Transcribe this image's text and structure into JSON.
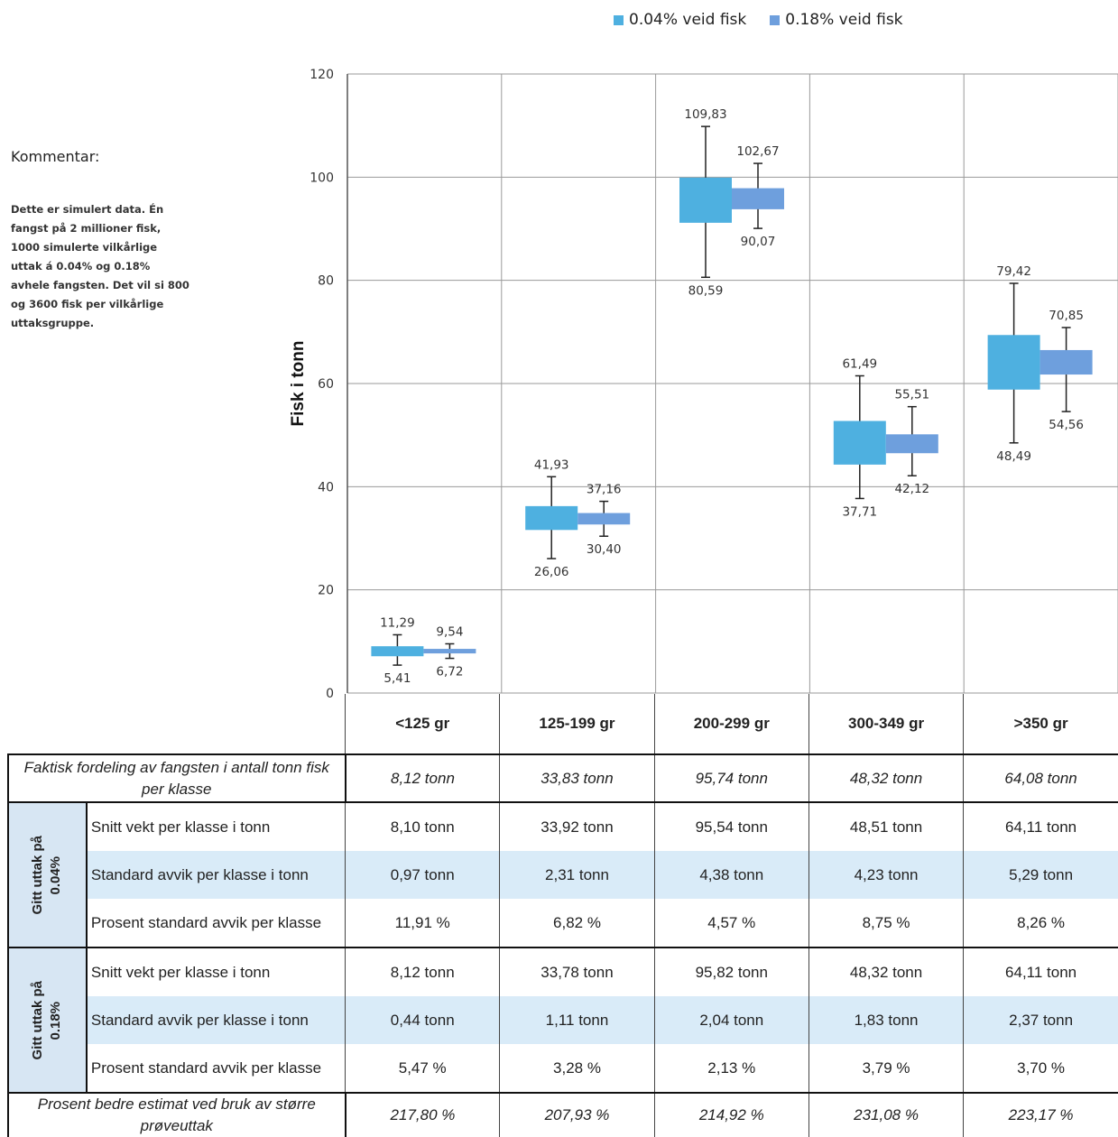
{
  "legend": [
    {
      "label": "0.04% veid fisk",
      "color": "#4eb0e0"
    },
    {
      "label": "0.18% veid fisk",
      "color": "#6e9fdd"
    }
  ],
  "comment": {
    "title": "Kommentar:",
    "text": "Dette er simulert data. Én fangst på 2 millioner fisk, 1000 simulerte vilkårlige uttak á 0.04% og 0.18% avhele fangsten. Det vil si 800 og 3600 fisk per vilkårlige uttaksgruppe."
  },
  "chart_data": {
    "type": "box",
    "ylabel": "Fisk i tonn",
    "ylim": [
      0,
      120
    ],
    "yticks": [
      "0",
      "20",
      "40",
      "60",
      "80",
      "100",
      "120"
    ],
    "categories": [
      "<125 gr",
      "125-199 gr",
      "200-299 gr",
      "300-349 gr",
      ">350 gr"
    ],
    "series": [
      {
        "name": "0.04% veid fisk",
        "color": "#4eb0e0",
        "max": [
          11.29,
          41.93,
          109.83,
          61.49,
          79.42
        ],
        "max_labels": [
          "11,29",
          "41,93",
          "109,83",
          "61,49",
          "79,42"
        ],
        "min": [
          5.41,
          26.06,
          80.59,
          37.71,
          48.49
        ],
        "min_labels": [
          "5,41",
          "26,06",
          "80,59",
          "37,71",
          "48,49"
        ],
        "q3": [
          9.07,
          36.23,
          99.92,
          52.74,
          69.4
        ],
        "q1": [
          7.13,
          31.61,
          91.16,
          44.28,
          58.82
        ]
      },
      {
        "name": "0.18% veid fisk",
        "color": "#6e9fdd",
        "max": [
          9.54,
          37.16,
          102.67,
          55.51,
          70.85
        ],
        "max_labels": [
          "9,54",
          "37,16",
          "102,67",
          "55,51",
          "70,85"
        ],
        "min": [
          6.72,
          30.4,
          90.07,
          42.12,
          54.56
        ],
        "min_labels": [
          "6,72",
          "30,40",
          "90,07",
          "42,12",
          "54,56"
        ],
        "q3": [
          8.56,
          34.89,
          97.86,
          50.15,
          66.48
        ],
        "q1": [
          7.68,
          32.67,
          93.78,
          46.49,
          61.74
        ]
      }
    ]
  },
  "table": {
    "headers": [
      "<125 gr",
      "125-199 gr",
      "200-299 gr",
      "300-349 gr",
      ">350 gr"
    ],
    "faktisk": {
      "label": "Faktisk fordeling av fangsten i antall tonn fisk per klasse",
      "values": [
        "8,12 tonn",
        "33,83 tonn",
        "95,74 tonn",
        "48,32 tonn",
        "64,08 tonn"
      ]
    },
    "group1": {
      "side_label_1": "Gitt uttak på",
      "side_label_2": "0.04%",
      "rows": [
        {
          "label": "Snitt vekt per klasse i tonn",
          "values": [
            "8,10 tonn",
            "33,92 tonn",
            "95,54 tonn",
            "48,51 tonn",
            "64,11 tonn"
          ]
        },
        {
          "label": "Standard avvik per klasse i tonn",
          "values": [
            "0,97 tonn",
            "2,31 tonn",
            "4,38 tonn",
            "4,23 tonn",
            "5,29 tonn"
          ]
        },
        {
          "label": "Prosent standard avvik per klasse",
          "values": [
            "11,91 %",
            "6,82 %",
            "4,57 %",
            "8,75 %",
            "8,26 %"
          ]
        }
      ]
    },
    "group2": {
      "side_label_1": "Gitt uttak på",
      "side_label_2": "0.18%",
      "rows": [
        {
          "label": "Snitt vekt per klasse i tonn",
          "values": [
            "8,12 tonn",
            "33,78 tonn",
            "95,82 tonn",
            "48,32 tonn",
            "64,11 tonn"
          ]
        },
        {
          "label": "Standard avvik per klasse i tonn",
          "values": [
            "0,44 tonn",
            "1,11 tonn",
            "2,04 tonn",
            "1,83 tonn",
            "2,37 tonn"
          ]
        },
        {
          "label": "Prosent standard avvik per klasse",
          "values": [
            "5,47 %",
            "3,28 %",
            "2,13 %",
            "3,79 %",
            "3,70 %"
          ]
        }
      ]
    },
    "bedre": {
      "label": "Prosent bedre estimat ved bruk av større prøveuttak",
      "values": [
        "217,80 %",
        "207,93 %",
        "214,92 %",
        "231,08 %",
        "223,17 %"
      ]
    }
  }
}
